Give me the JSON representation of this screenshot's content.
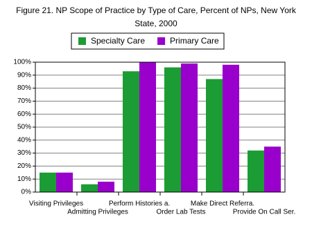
{
  "chart_data": {
    "type": "bar",
    "title": "Figure 21.  NP Scope of Practice by Type of Care, Percent of NPs, New York State, 2000",
    "categories": [
      "Visiting Privileges",
      "Admitting Privileges",
      "Perform Histories a.",
      "Order Lab Tests",
      "Make Direct Referra.",
      "Provide On Call Ser."
    ],
    "series": [
      {
        "name": "Specialty Care",
        "color": "#1c9c34",
        "values": [
          15,
          6,
          93,
          96,
          87,
          32
        ]
      },
      {
        "name": "Primary Care",
        "color": "#9900cc",
        "values": [
          15,
          8,
          100,
          99,
          98,
          35
        ]
      }
    ],
    "ylim": [
      0,
      100
    ],
    "yticks": [
      {
        "value": 0,
        "label": "0%"
      },
      {
        "value": 10,
        "label": "10%"
      },
      {
        "value": 20,
        "label": "20%"
      },
      {
        "value": 30,
        "label": "30%"
      },
      {
        "value": 40,
        "label": "40%"
      },
      {
        "value": 50,
        "label": "50%"
      },
      {
        "value": 60,
        "label": "60%"
      },
      {
        "value": 70,
        "label": "70%"
      },
      {
        "value": 80,
        "label": "80%"
      },
      {
        "value": 90,
        "label": "90%"
      },
      {
        "value": 100,
        "label": "100%"
      }
    ],
    "grid": true,
    "legend": "top"
  }
}
